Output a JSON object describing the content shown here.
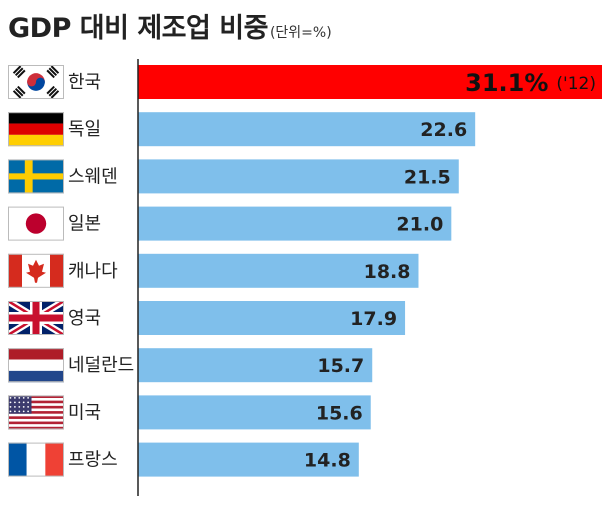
{
  "chart_data": {
    "type": "bar",
    "orientation": "horizontal",
    "title": "GDP 대비 제조업 비중",
    "unit_label": "(단위=%)",
    "categories": [
      "한국",
      "독일",
      "스웨덴",
      "일본",
      "캐나다",
      "영국",
      "네덜란드",
      "미국",
      "프랑스"
    ],
    "values": [
      31.1,
      22.6,
      21.5,
      21.0,
      18.8,
      17.9,
      15.7,
      15.6,
      14.8
    ],
    "value_labels": [
      "31.1%",
      "22.6",
      "21.5",
      "21.0",
      "18.8",
      "17.9",
      "15.7",
      "15.6",
      "14.8"
    ],
    "highlight": {
      "index": 0,
      "note": "('12)"
    },
    "flags": [
      "korea-flag",
      "germany-flag",
      "sweden-flag",
      "japan-flag",
      "canada-flag",
      "uk-flag",
      "netherlands-flag",
      "usa-flag",
      "france-flag"
    ],
    "colors": {
      "bar": "#7fbfeb",
      "highlight_bar": "#ff0000"
    },
    "xlim": [
      0,
      31.1
    ],
    "grid": false
  }
}
